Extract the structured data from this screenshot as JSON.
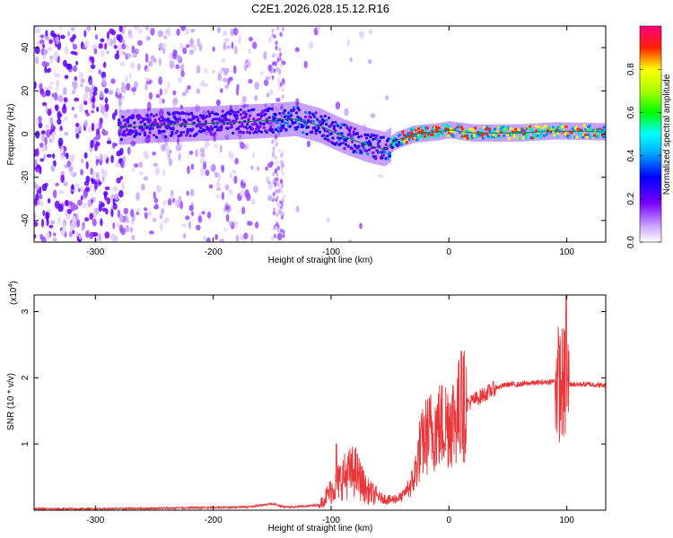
{
  "figure_title": "C2E1.2026.028.15.12.R16",
  "chart_data": [
    {
      "type": "heatmap",
      "title": "C2E1.2026.028.15.12.R16",
      "xlabel": "Height of straight line (km)",
      "ylabel": "Frequency (Hz)",
      "xlim": [
        -352,
        133
      ],
      "ylim": [
        -50,
        50
      ],
      "xticks": [
        -300,
        -200,
        -100,
        0,
        100
      ],
      "yticks": [
        -40,
        -20,
        0,
        20,
        40
      ],
      "colorbar": {
        "label": "Normalized spectral amplitude",
        "range": [
          0,
          1
        ],
        "ticks": [
          "0.0",
          "0.2",
          "0.4",
          "0.6",
          "0.8"
        ],
        "tick_values": [
          0.0,
          0.2,
          0.4,
          0.6,
          0.8
        ],
        "colormap": [
          "#ffffff",
          "#8a00ff",
          "#0000ff",
          "#00ffff",
          "#00ff00",
          "#ffff00",
          "#ff0000",
          "#ff0080"
        ]
      },
      "ridge": {
        "x": [
          -280,
          -250,
          -200,
          -160,
          -130,
          -110,
          -90,
          -70,
          -55,
          -45,
          -30,
          -10,
          0,
          20,
          60,
          90,
          133
        ],
        "y": [
          3,
          4,
          5,
          6,
          7,
          4,
          -1,
          -5,
          -7,
          -3,
          0,
          1,
          2,
          0.5,
          0.5,
          1.5,
          1
        ]
      }
    },
    {
      "type": "line",
      "ylabel": "SNR (10 * v/v)",
      "xlabel": "Height of straight line (km)",
      "y_scale_label": "(x10",
      "y_scale_exp": "4",
      "y_scale_suffix": ")",
      "xlim": [
        -352,
        133
      ],
      "ylim": [
        0,
        3.25
      ],
      "xticks": [
        -300,
        -200,
        -100,
        0,
        100
      ],
      "yticks": [
        1,
        2,
        3
      ],
      "color": "#e8363a",
      "series": [
        {
          "name": "SNR",
          "x": [
            -352,
            -300,
            -250,
            -200,
            -170,
            -150,
            -140,
            -130,
            -110,
            -100,
            -90,
            -80,
            -70,
            -60,
            -50,
            -40,
            -30,
            -25,
            -20,
            -15,
            -10,
            -5,
            0,
            5,
            10,
            15,
            20,
            30,
            40,
            50,
            60,
            70,
            80,
            90,
            95,
            100,
            105,
            110,
            120,
            133
          ],
          "y": [
            0.02,
            0.02,
            0.03,
            0.04,
            0.05,
            0.1,
            0.05,
            0.05,
            0.08,
            0.3,
            0.5,
            0.6,
            0.3,
            0.2,
            0.15,
            0.2,
            0.45,
            0.9,
            1.1,
            1.2,
            1.25,
            1.3,
            1.35,
            1.4,
            1.55,
            1.6,
            1.65,
            1.75,
            1.85,
            1.9,
            1.9,
            1.92,
            1.93,
            1.95,
            1.9,
            1.9,
            1.9,
            1.9,
            1.9,
            1.88
          ]
        }
      ]
    }
  ]
}
